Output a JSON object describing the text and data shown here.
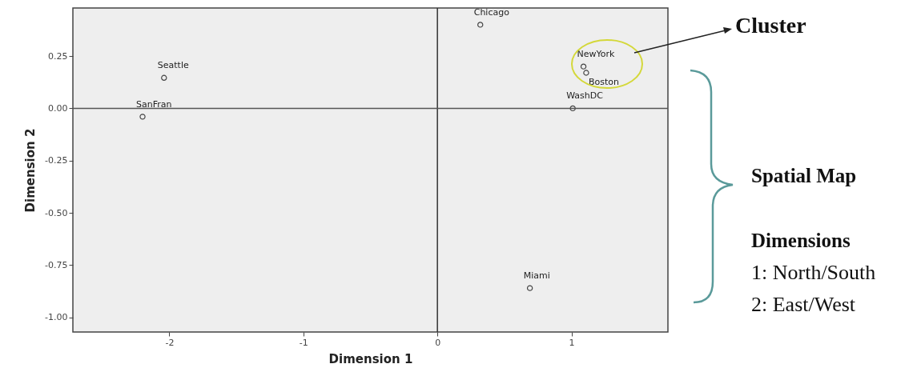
{
  "chart_data": {
    "type": "scatter",
    "xlabel": "Dimension 1",
    "ylabel": "Dimension 2",
    "x": [
      -2.04,
      -2.2,
      0.32,
      1.09,
      1.11,
      1.01,
      0.69
    ],
    "series": [
      {
        "color": "#444444",
        "values": [
          0.146,
          -0.04,
          0.4,
          0.2,
          0.17,
          0.0,
          -0.86
        ]
      }
    ],
    "xlim": [
      -2.72,
      1.72
    ],
    "ylim": [
      -1.07,
      0.48
    ],
    "xticks": [
      -2,
      -1,
      0,
      1
    ],
    "yticks": [
      {
        "value": 0.25,
        "label": "0.25"
      },
      {
        "value": 0,
        "label": "0.00"
      },
      {
        "value": -0.25,
        "label": "-0.25"
      },
      {
        "value": -0.5,
        "label": "-0.50"
      },
      {
        "value": -0.75,
        "label": "-0.75"
      },
      {
        "value": -1,
        "label": "-1.00"
      }
    ],
    "grid": false,
    "marker": "circle",
    "ref_lines": [
      {
        "axis": "x",
        "value": 0,
        "color": "#333333"
      },
      {
        "axis": "y",
        "value": 0,
        "color": "#555555"
      }
    ],
    "annotations": [
      {
        "text": "Seattle",
        "x": -2.04,
        "y": 0.146
      },
      {
        "text": "SanFran",
        "x": -2.2,
        "y": -0.04
      },
      {
        "text": "Chicago",
        "x": 0.32,
        "y": 0.4
      },
      {
        "text": "NewYork",
        "x": 1.09,
        "y": 0.2
      },
      {
        "text": "Boston",
        "x": 1.11,
        "y": 0.17
      },
      {
        "text": "WashDC",
        "x": 1.01,
        "y": 0.0
      },
      {
        "text": "Miami",
        "x": 0.69,
        "y": -0.86
      },
      "Cluster",
      "Spatial Map",
      "Dimensions",
      "1: North/South",
      "2: East/West"
    ]
  }
}
